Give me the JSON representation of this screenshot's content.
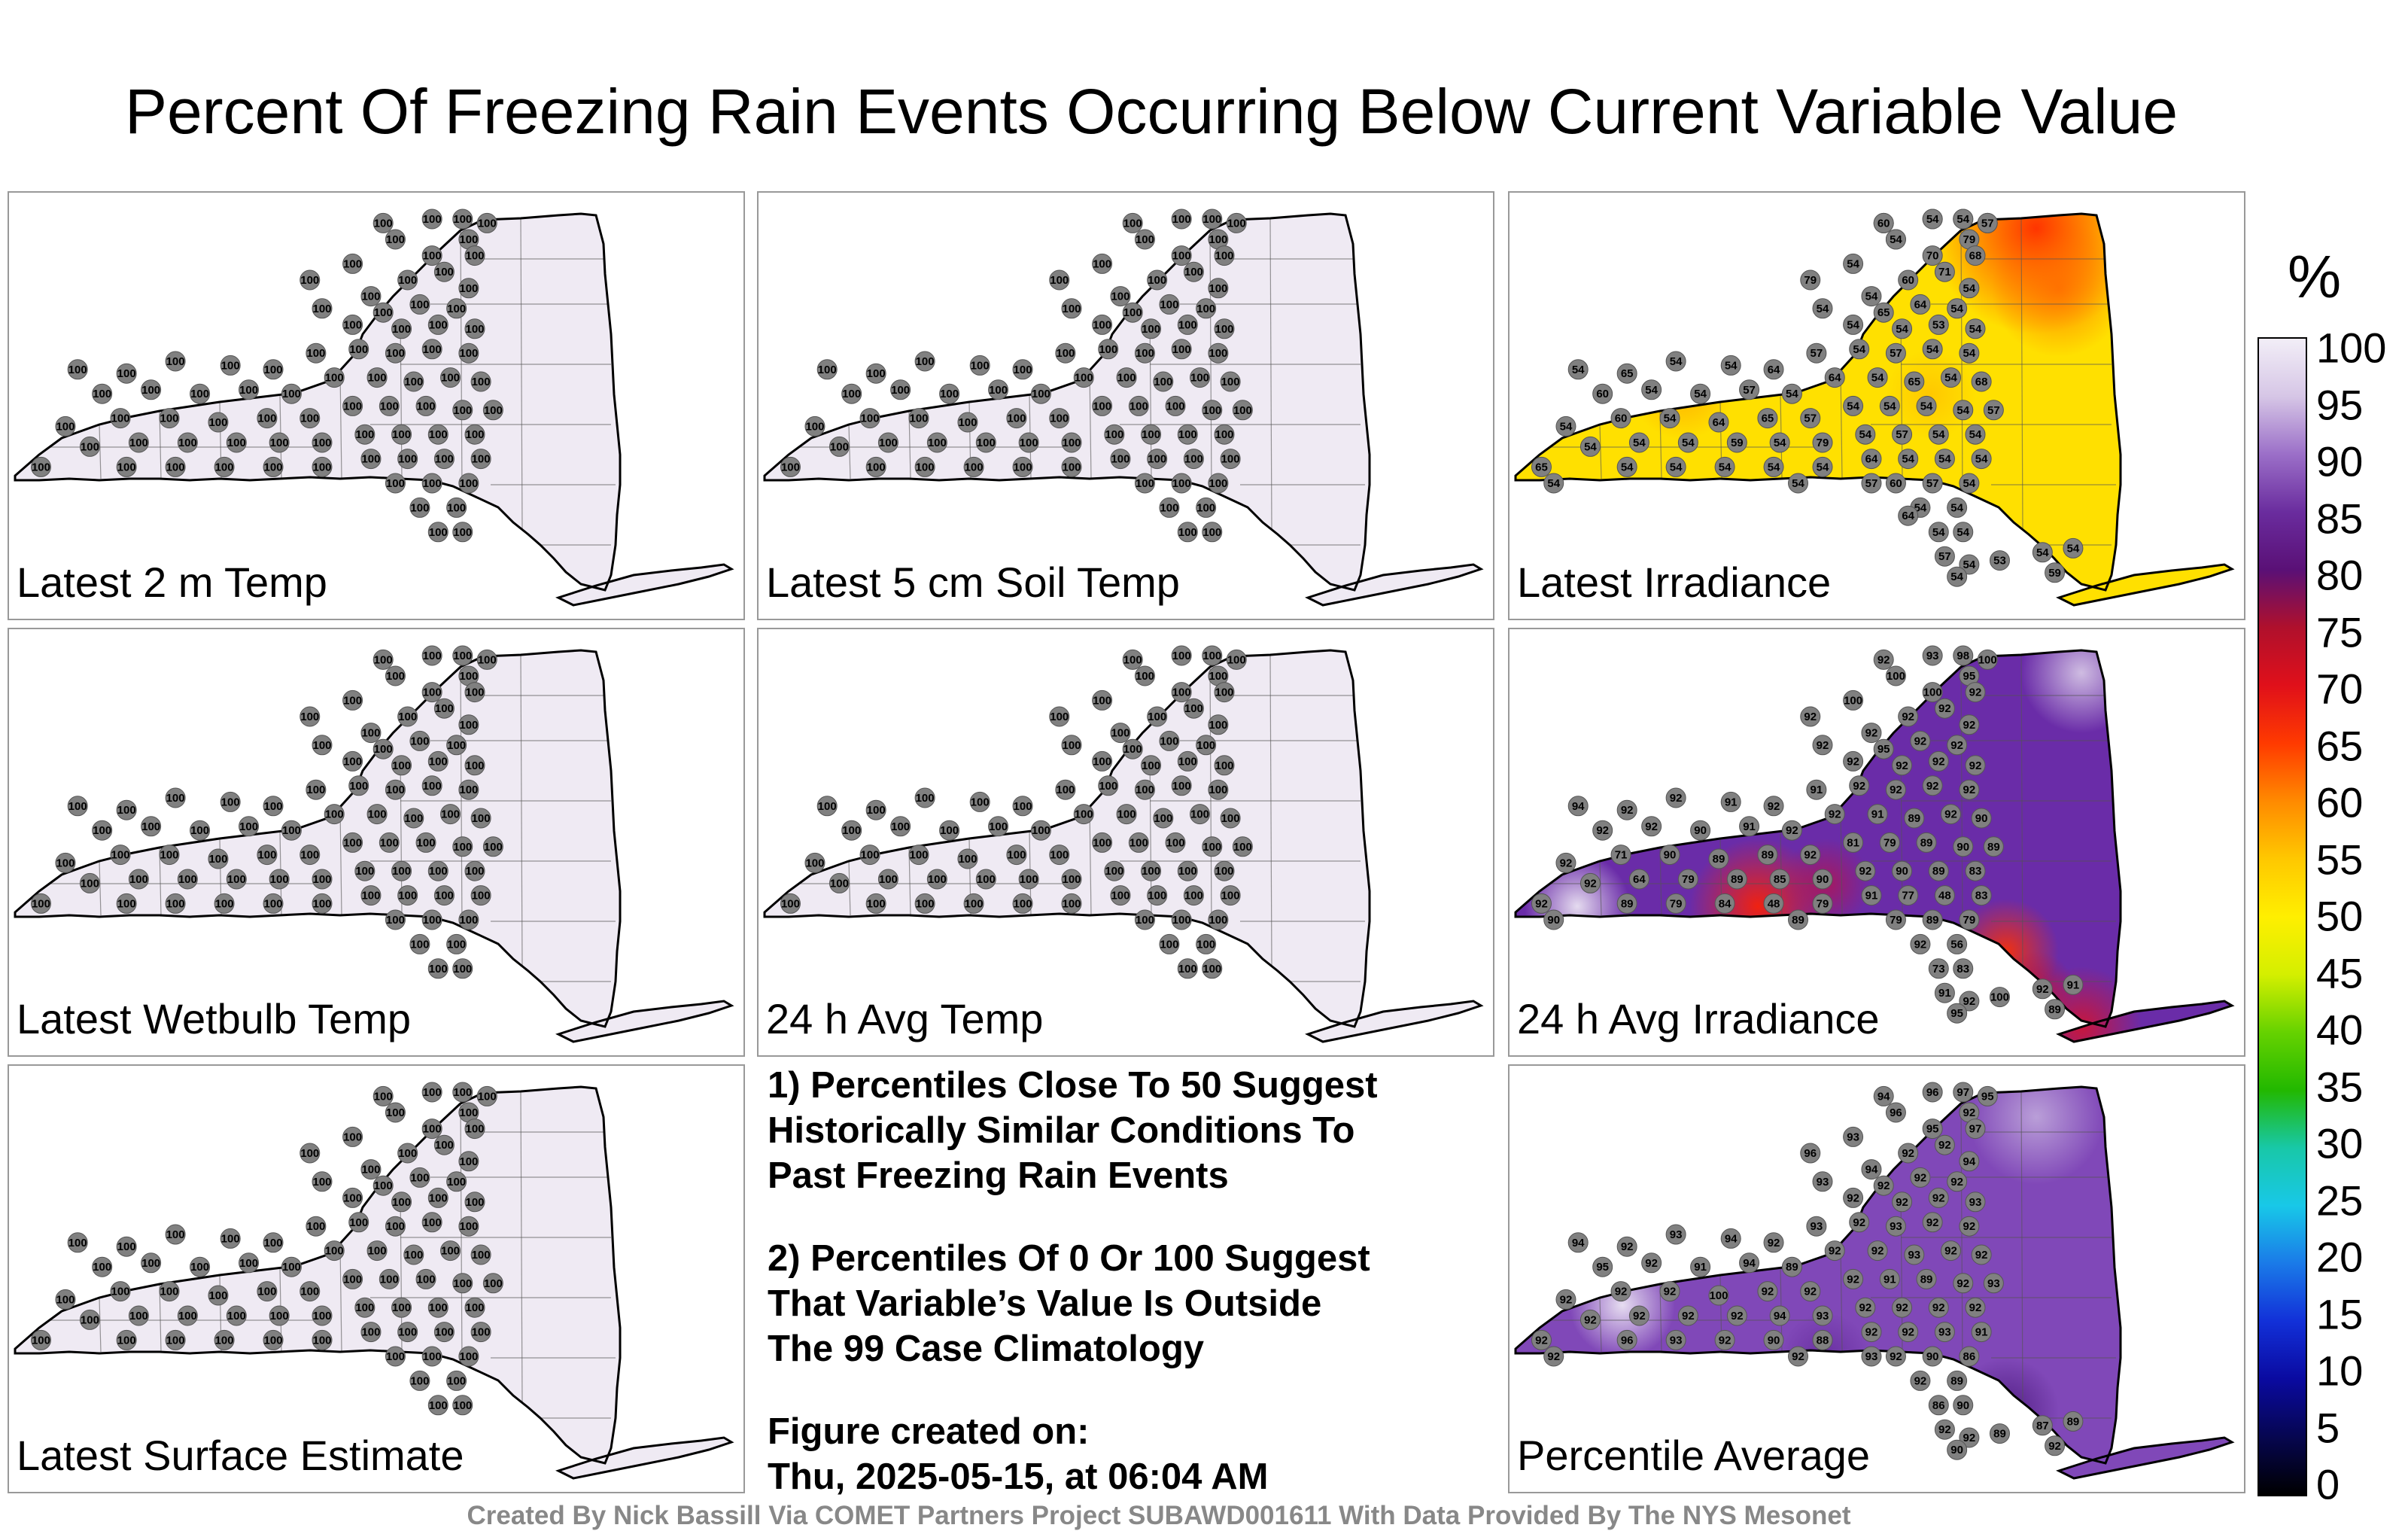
{
  "title": "Percent Of Freezing Rain Events Occurring Below Current Variable Value",
  "panels": [
    {
      "id": "p1",
      "label": "Latest 2 m Temp",
      "fill": "uniform-100",
      "values": [
        100,
        100,
        100,
        100,
        100,
        100,
        100,
        100,
        100,
        100,
        100,
        100,
        100,
        100,
        100,
        100,
        100,
        100,
        100,
        100,
        100,
        100,
        100,
        100,
        100,
        100,
        100,
        100,
        100,
        100,
        100,
        100,
        100,
        100,
        100,
        100,
        100,
        100,
        100,
        100,
        100,
        100,
        100,
        100,
        100,
        100,
        100,
        100,
        100,
        100,
        100,
        100,
        100,
        100,
        100,
        100,
        100,
        100,
        100,
        100,
        100,
        100,
        100,
        100,
        100,
        100,
        100,
        100,
        100,
        100,
        100,
        100,
        100,
        100,
        100,
        100,
        100,
        100,
        100,
        100
      ]
    },
    {
      "id": "p2",
      "label": "Latest 5 cm Soil Temp",
      "fill": "uniform-100",
      "values": [
        100,
        100,
        100,
        100,
        100,
        100,
        100,
        100,
        100,
        100,
        100,
        100,
        100,
        100,
        100,
        100,
        100,
        100,
        100,
        100,
        100,
        100,
        100,
        100,
        100,
        100,
        100,
        100,
        100,
        100,
        100,
        100,
        100,
        100,
        100,
        100,
        100,
        100,
        100,
        100,
        100,
        100,
        100,
        100,
        100,
        100,
        100,
        100,
        100,
        100,
        100,
        100,
        100,
        100,
        100,
        100,
        100,
        100,
        100,
        100,
        100,
        100,
        100,
        100,
        100,
        100,
        100,
        100,
        100,
        100,
        100,
        100,
        100,
        100,
        100,
        100,
        100,
        100,
        100,
        100
      ]
    },
    {
      "id": "p3",
      "label": "Latest Irradiance",
      "fill": "irradiance",
      "values": [
        64,
        79,
        68,
        71,
        65,
        79,
        54,
        70,
        68,
        79,
        60,
        71,
        54,
        54,
        54,
        65,
        64,
        54,
        54,
        54,
        53,
        54,
        54,
        65,
        54,
        54,
        64,
        57,
        54,
        57,
        54,
        54,
        60,
        54,
        54,
        57,
        54,
        64,
        54,
        65,
        54,
        68,
        54,
        60,
        54,
        64,
        65,
        57,
        54,
        54,
        54,
        54,
        57,
        54,
        54,
        54,
        59,
        54,
        79,
        54,
        57,
        54,
        54,
        65,
        54,
        54,
        54,
        54,
        54,
        64,
        54,
        54,
        54,
        60,
        57,
        54,
        54,
        54,
        54,
        54,
        57,
        54,
        54,
        53,
        54,
        54,
        59,
        54,
        54,
        57,
        64,
        60,
        54,
        54,
        57,
        54
      ]
    },
    {
      "id": "p4",
      "label": "Latest Wetbulb Temp",
      "fill": "uniform-100",
      "values": [
        100,
        100,
        100,
        100,
        100,
        100,
        100,
        100,
        100,
        100,
        100,
        100,
        100,
        100,
        100,
        100,
        100,
        100,
        100,
        100,
        100,
        100,
        100,
        100,
        100,
        100,
        100,
        100,
        100,
        100,
        100,
        100,
        100,
        100,
        100,
        100,
        100,
        100,
        100,
        100,
        100,
        100,
        100,
        100,
        100,
        100,
        100,
        100,
        100,
        100,
        100,
        100,
        100,
        100,
        100,
        100,
        100,
        100,
        100,
        100,
        100,
        100,
        100,
        100,
        100,
        100,
        100,
        100,
        100,
        100,
        100,
        100,
        100,
        100,
        100,
        100,
        100,
        100,
        100,
        100
      ]
    },
    {
      "id": "p5",
      "label": "24 h Avg Temp",
      "fill": "uniform-100",
      "values": [
        100,
        100,
        100,
        100,
        100,
        100,
        100,
        100,
        100,
        100,
        100,
        100,
        100,
        100,
        100,
        100,
        100,
        100,
        100,
        100,
        100,
        100,
        100,
        100,
        100,
        100,
        100,
        100,
        100,
        100,
        100,
        100,
        100,
        100,
        100,
        100,
        100,
        100,
        100,
        100,
        100,
        100,
        100,
        100,
        100,
        100,
        100,
        100,
        100,
        100,
        100,
        100,
        100,
        100,
        100,
        100,
        100,
        100,
        100,
        100,
        100,
        100,
        100,
        100,
        100,
        100,
        100,
        100,
        100,
        100,
        100,
        100,
        100,
        100,
        100,
        100,
        100,
        100,
        100,
        100
      ]
    },
    {
      "id": "p6",
      "label": "24 h Avg Irradiance",
      "fill": "avg-irradiance",
      "values": [
        92,
        93,
        98,
        100,
        100,
        95,
        100,
        100,
        92,
        92,
        92,
        92,
        92,
        92,
        92,
        95,
        92,
        92,
        92,
        92,
        92,
        92,
        94,
        92,
        92,
        91,
        92,
        91,
        92,
        92,
        92,
        92,
        92,
        92,
        90,
        91,
        92,
        92,
        91,
        89,
        92,
        90,
        92,
        71,
        90,
        89,
        89,
        92,
        81,
        79,
        89,
        90,
        89,
        92,
        64,
        79,
        89,
        85,
        90,
        92,
        90,
        89,
        83,
        92,
        89,
        79,
        84,
        48,
        79,
        91,
        77,
        48,
        83,
        79,
        89,
        79,
        92,
        56,
        73,
        83,
        91,
        92,
        95,
        100,
        92,
        91,
        89,
        90,
        89
      ]
    },
    {
      "id": "p7",
      "label": "Latest Surface Estimate",
      "fill": "uniform-100",
      "values": [
        100,
        100,
        100,
        100,
        100,
        100,
        100,
        100,
        100,
        100,
        100,
        100,
        100,
        100,
        100,
        100,
        100,
        100,
        100,
        100,
        100,
        100,
        100,
        100,
        100,
        100,
        100,
        100,
        100,
        100,
        100,
        100,
        100,
        100,
        100,
        100,
        100,
        100,
        100,
        100,
        100,
        100,
        100,
        100,
        100,
        100,
        100,
        100,
        100,
        100,
        100,
        100,
        100,
        100,
        100,
        100,
        100,
        100,
        100,
        100,
        100,
        100,
        100,
        100,
        100,
        100,
        100,
        100,
        100,
        100,
        100,
        100,
        100,
        100,
        100,
        100,
        100,
        100,
        100,
        100
      ]
    },
    {
      "id": "p8",
      "label": "Percentile Average",
      "fill": "average",
      "values": [
        94,
        96,
        97,
        95,
        96,
        92,
        93,
        95,
        97,
        96,
        92,
        92,
        94,
        94,
        93,
        92,
        92,
        92,
        92,
        92,
        92,
        93,
        94,
        92,
        93,
        94,
        92,
        93,
        92,
        93,
        92,
        92,
        95,
        92,
        91,
        94,
        89,
        92,
        92,
        93,
        92,
        92,
        92,
        92,
        92,
        100,
        92,
        92,
        92,
        91,
        89,
        92,
        93,
        92,
        92,
        92,
        92,
        94,
        93,
        92,
        92,
        92,
        92,
        92,
        96,
        93,
        92,
        90,
        88,
        92,
        92,
        93,
        91,
        92,
        90,
        86,
        92,
        89,
        86,
        90,
        92,
        92,
        90,
        89,
        87,
        89,
        92,
        92,
        92,
        93
      ]
    }
  ],
  "notes": {
    "note1": [
      "1) Percentiles Close To 50 Suggest",
      "Historically Similar Conditions To",
      "Past Freezing Rain Events"
    ],
    "note2": [
      "2) Percentiles Of 0 Or 100 Suggest",
      "That Variable’s Value Is Outside",
      "The 99 Case Climatology"
    ],
    "created_label": "Figure created on:",
    "created_value": "Thu, 2025-05-15, at 06:04 AM"
  },
  "colorbar": {
    "unit": "%",
    "ticks": [
      "100",
      "95",
      "90",
      "85",
      "80",
      "75",
      "70",
      "65",
      "60",
      "55",
      "50",
      "45",
      "40",
      "35",
      "30",
      "25",
      "20",
      "15",
      "10",
      "5",
      "0"
    ],
    "stops": [
      "#f2eef7",
      "#d6c6e6",
      "#9b6fc8",
      "#6a2c9e",
      "#5a1076",
      "#b0102c",
      "#e0101a",
      "#ff3a00",
      "#ff8a00",
      "#ffc800",
      "#ffef00",
      "#d4ef00",
      "#66d200",
      "#22b800",
      "#18c8a8",
      "#18c8e8",
      "#1a7ae8",
      "#1230d8",
      "#0a0aa0",
      "#060650",
      "#000000"
    ]
  },
  "footer": "Created By Nick Bassill Via COMET Partners Project SUBAWD001611 With Data Provided By The NYS Mesonet"
}
